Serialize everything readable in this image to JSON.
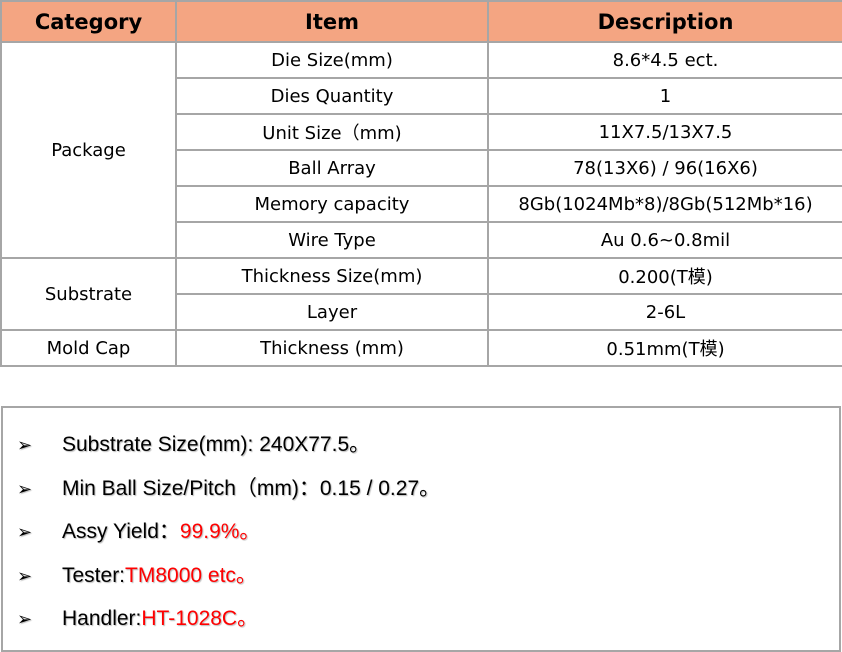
{
  "table": {
    "headers": [
      "Category",
      "Item",
      "Description"
    ],
    "groups": [
      {
        "category": "Package",
        "rows": [
          {
            "item": "Die Size(mm)",
            "description": "8.6*4.5 ect."
          },
          {
            "item": "Dies Quantity",
            "description": "1"
          },
          {
            "item": "Unit Size（mm)",
            "description": "11X7.5/13X7.5"
          },
          {
            "item": "Ball Array",
            "description": "78(13X6) / 96(16X6)"
          },
          {
            "item": "Memory capacity",
            "description": "8Gb(1024Mb*8)/8Gb(512Mb*16)"
          },
          {
            "item": "Wire Type",
            "description": "Au  0.6~0.8mil"
          }
        ]
      },
      {
        "category": "Substrate",
        "rows": [
          {
            "item": "Thickness Size(mm)",
            "description": "0.200(T模)"
          },
          {
            "item": "Layer",
            "description": "2-6L"
          }
        ]
      },
      {
        "category": "Mold Cap",
        "rows": [
          {
            "item": "Thickness (mm)",
            "description": "0.51mm(T模)"
          }
        ]
      }
    ]
  },
  "notes": {
    "bullet_icon": "arrowhead-bullet",
    "accent_color": "#ff0000",
    "header_color": "#f4a582",
    "items": [
      {
        "label": "Substrate Size(mm): 240X77.5。",
        "value": ""
      },
      {
        "label": "Min Ball Size/Pitch（mm)：0.15 / 0.27。",
        "value": ""
      },
      {
        "label": "Assy Yield：",
        "value": "99.9%。"
      },
      {
        "label": "Tester:",
        "value": "TM8000 etc。"
      },
      {
        "label": "Handler:",
        "value": "HT-1028C。"
      }
    ]
  }
}
